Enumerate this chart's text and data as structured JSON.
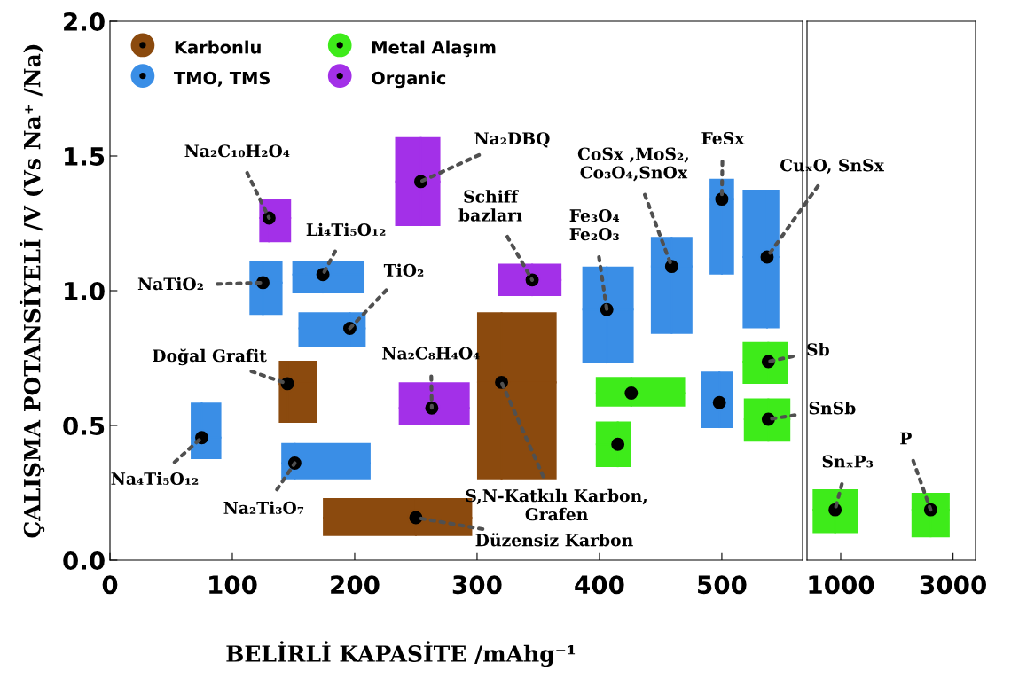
{
  "chart_data": [
    {
      "type": "scatter",
      "xlabel": "BELİRLİ KAPASİTE /mAhg⁻¹",
      "ylabel": "ÇALIŞMA POTANSİYELİ /V (Vs Na⁺ /Na)",
      "xlim": [
        0,
        566
      ],
      "ylim": [
        0,
        2.0
      ],
      "xticks": [
        0,
        100,
        200,
        300,
        400,
        500
      ],
      "yticks": [
        {
          "value": 0,
          "label": "0.0"
        },
        {
          "value": 0.5,
          "label": "0.5"
        },
        {
          "value": 1.0,
          "label": "1.0"
        },
        {
          "value": 1.5,
          "label": "1.5"
        },
        {
          "value": 2.0,
          "label": "2.0"
        }
      ],
      "legend": "top left",
      "marker": "circle",
      "series": [
        {
          "name": "Karbonlu",
          "color": "#8b4a0e",
          "x": [
            145,
            250,
            320
          ],
          "values": [
            0.655,
            0.158,
            0.66
          ],
          "xerrors": [
            [
              138,
              169
            ],
            [
              174,
              296
            ],
            [
              300,
              365
            ]
          ],
          "errors": [
            [
              0.51,
              0.74
            ],
            [
              0.09,
              0.23
            ],
            [
              0.3,
              0.92
            ]
          ]
        },
        {
          "name": "TMO, TMS",
          "color": "#3a8ee6",
          "x": [
            125,
            174,
            196,
            75,
            151,
            406,
            459,
            500,
            537,
            498
          ],
          "values": [
            1.03,
            1.06,
            0.86,
            0.455,
            0.36,
            0.93,
            1.09,
            1.34,
            1.125,
            0.585
          ],
          "xerrors": [
            [
              114,
              141
            ],
            [
              149,
              208
            ],
            [
              154,
              209
            ],
            [
              66,
              91
            ],
            [
              140,
              213
            ],
            [
              386,
              428
            ],
            [
              442,
              476
            ],
            [
              490,
              510
            ],
            [
              517,
              547
            ],
            [
              483,
              509
            ]
          ],
          "errors": [
            [
              0.91,
              1.11
            ],
            [
              0.99,
              1.11
            ],
            [
              0.79,
              0.92
            ],
            [
              0.375,
              0.585
            ],
            [
              0.3,
              0.435
            ],
            [
              0.73,
              1.09
            ],
            [
              0.84,
              1.2
            ],
            [
              1.06,
              1.415
            ],
            [
              0.86,
              1.375
            ],
            [
              0.49,
              0.7
            ]
          ]
        },
        {
          "name": "Metal Alaşım",
          "color": "#3eeb1a",
          "x": [
            426,
            415,
            538,
            538
          ],
          "values": [
            0.62,
            0.43,
            0.737,
            0.523
          ],
          "xerrors": [
            [
              397,
              470
            ],
            [
              397,
              426
            ],
            [
              517,
              554
            ],
            [
              518,
              556
            ]
          ],
          "errors": [
            [
              0.57,
              0.68
            ],
            [
              0.345,
              0.515
            ],
            [
              0.655,
              0.81
            ],
            [
              0.44,
              0.6
            ]
          ]
        },
        {
          "name": "Organic",
          "color": "#a330e8",
          "x": [
            130,
            254,
            263,
            345
          ],
          "values": [
            1.27,
            1.405,
            0.565,
            1.04
          ],
          "xerrors": [
            [
              122,
              148
            ],
            [
              233,
              270
            ],
            [
              236,
              294
            ],
            [
              317,
              369
            ]
          ],
          "errors": [
            [
              1.18,
              1.34
            ],
            [
              1.24,
              1.57
            ],
            [
              0.5,
              0.66
            ],
            [
              0.98,
              1.1
            ]
          ]
        }
      ],
      "annotations": [
        {
          "text": "Na₂C₁₀H₂O₄",
          "x": 130,
          "y": 1.27
        },
        {
          "text": "Li₄Ti₅O₁₂",
          "x": 174,
          "y": 1.06
        },
        {
          "text": "NaTiO₂",
          "x": 125,
          "y": 1.03
        },
        {
          "text": "TiO₂",
          "x": 196,
          "y": 0.86
        },
        {
          "text": "Doğal Grafit",
          "x": 145,
          "y": 0.655
        },
        {
          "text": "Na₂C₈H₄O₄",
          "x": 263,
          "y": 0.565
        },
        {
          "text": "Na₄Ti₅O₁₂",
          "x": 75,
          "y": 0.455
        },
        {
          "text": "Na₂Ti₃O₇",
          "x": 151,
          "y": 0.36
        },
        {
          "text": "Düzensiz Karbon",
          "x": 250,
          "y": 0.158
        },
        {
          "text": "Na₂DBQ",
          "x": 254,
          "y": 1.405
        },
        {
          "text": "Schiff\nbazları",
          "x": 345,
          "y": 1.04
        },
        {
          "text": "S,N-Katkılı Karbon,\nGrafen",
          "x": 320,
          "y": 0.66
        },
        {
          "text": "Fe₃O₄\nFe₂O₃",
          "x": 406,
          "y": 0.93
        },
        {
          "text": "CoSx ,MoS₂,\nCo₃O₄,SnOx",
          "x": 459,
          "y": 1.09
        },
        {
          "text": "FeSx",
          "x": 500,
          "y": 1.34
        },
        {
          "text": "CuₓO, SnSx",
          "x": 537,
          "y": 1.125
        },
        {
          "text": "Sb",
          "x": 538,
          "y": 0.737
        },
        {
          "text": "SnSb",
          "x": 538,
          "y": 0.523
        }
      ]
    },
    {
      "type": "scatter",
      "xlim": [
        400,
        3400
      ],
      "ylim": [
        0,
        2.0
      ],
      "xticks": [
        1000,
        3000
      ],
      "tick_labels": "x",
      "marker": "circle",
      "series": [
        {
          "color": "#3eeb1a",
          "x": [
            900,
            2600
          ],
          "values": [
            0.187,
            0.187
          ],
          "xerrors": [
            [
              500,
              1300
            ],
            [
              2260,
              2940
            ]
          ],
          "errors": [
            [
              0.1,
              0.263
            ],
            [
              0.085,
              0.25
            ]
          ]
        }
      ],
      "annotations": [
        {
          "text": "SnₓP₃",
          "x": 900,
          "y": 0.187
        },
        {
          "text": "P",
          "x": 2600,
          "y": 0.187
        }
      ]
    }
  ]
}
